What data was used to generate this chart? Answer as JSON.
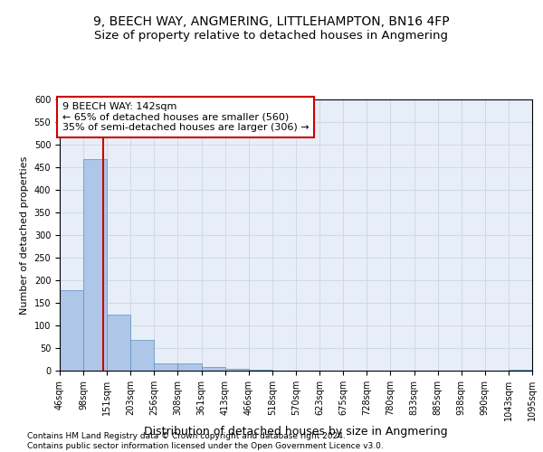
{
  "title_line1": "9, BEECH WAY, ANGMERING, LITTLEHAMPTON, BN16 4FP",
  "title_line2": "Size of property relative to detached houses in Angmering",
  "xlabel": "Distribution of detached houses by size in Angmering",
  "ylabel": "Number of detached properties",
  "footnote": "Contains HM Land Registry data © Crown copyright and database right 2024.\nContains public sector information licensed under the Open Government Licence v3.0.",
  "bin_edges": [
    46,
    98,
    151,
    203,
    256,
    308,
    361,
    413,
    466,
    518,
    570,
    623,
    675,
    728,
    780,
    833,
    885,
    938,
    990,
    1043,
    1095
  ],
  "bar_heights": [
    178,
    468,
    125,
    68,
    17,
    17,
    8,
    5,
    3,
    0,
    0,
    0,
    0,
    0,
    0,
    0,
    0,
    0,
    0,
    3
  ],
  "bar_color": "#aec6e8",
  "bar_edge_color": "#5a8fc0",
  "property_size": 142,
  "vline_color": "#cc0000",
  "annotation_text": "9 BEECH WAY: 142sqm\n← 65% of detached houses are smaller (560)\n35% of semi-detached houses are larger (306) →",
  "annotation_box_color": "#ffffff",
  "annotation_box_edge_color": "#cc0000",
  "ylim": [
    0,
    600
  ],
  "yticks": [
    0,
    50,
    100,
    150,
    200,
    250,
    300,
    350,
    400,
    450,
    500,
    550,
    600
  ],
  "grid_color": "#d0d8e8",
  "background_color": "#e8eef8",
  "title1_fontsize": 10,
  "title2_fontsize": 9.5,
  "xlabel_fontsize": 9,
  "ylabel_fontsize": 8,
  "tick_fontsize": 7,
  "annotation_fontsize": 8,
  "footnote_fontsize": 6.5
}
